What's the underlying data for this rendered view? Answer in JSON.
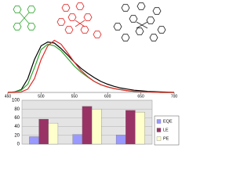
{
  "chart_data": [
    {
      "type": "line",
      "x": [
        450,
        460,
        470,
        480,
        490,
        500,
        510,
        520,
        530,
        540,
        550,
        560,
        570,
        580,
        590,
        600,
        610,
        620,
        630,
        640,
        650,
        660,
        670,
        680,
        690,
        700
      ],
      "xlim": [
        450,
        700
      ],
      "xticks": [
        450,
        500,
        550,
        600,
        650,
        700
      ],
      "ylim": [
        0,
        1
      ],
      "series": [
        {
          "color": "#000000",
          "values": [
            0,
            0.01,
            0.05,
            0.25,
            0.6,
            0.85,
            0.92,
            0.9,
            0.8,
            0.68,
            0.55,
            0.44,
            0.35,
            0.27,
            0.2,
            0.15,
            0.11,
            0.08,
            0.06,
            0.04,
            0.03,
            0.02,
            0.015,
            0.01,
            0.005,
            0
          ]
        },
        {
          "color": "#2fa62f",
          "values": [
            0,
            0.01,
            0.04,
            0.15,
            0.45,
            0.78,
            0.88,
            0.85,
            0.76,
            0.62,
            0.48,
            0.37,
            0.28,
            0.2,
            0.14,
            0.1,
            0.07,
            0.05,
            0.03,
            0.02,
            0.015,
            0.01,
            0.005,
            0,
            0,
            0
          ]
        },
        {
          "color": "#e02828",
          "values": [
            0,
            0,
            0.01,
            0.06,
            0.25,
            0.6,
            0.85,
            0.95,
            0.88,
            0.72,
            0.55,
            0.4,
            0.29,
            0.2,
            0.14,
            0.1,
            0.07,
            0.05,
            0.03,
            0.02,
            0.015,
            0.01,
            0.005,
            0,
            0,
            0
          ]
        }
      ]
    },
    {
      "type": "bar",
      "categories": [
        null,
        null,
        null
      ],
      "ylim": [
        0,
        100
      ],
      "yticks": [
        0,
        20,
        40,
        60,
        80,
        100
      ],
      "grid": true,
      "legend": "right",
      "series": [
        {
          "name": "EQE",
          "color": "#9999ff",
          "values": [
            17,
            22,
            21
          ]
        },
        {
          "name": "LE",
          "color": "#993366",
          "values": [
            57,
            86,
            77
          ]
        },
        {
          "name": "PE",
          "color": "#ffffcc",
          "values": [
            48,
            80,
            73
          ]
        }
      ]
    }
  ]
}
